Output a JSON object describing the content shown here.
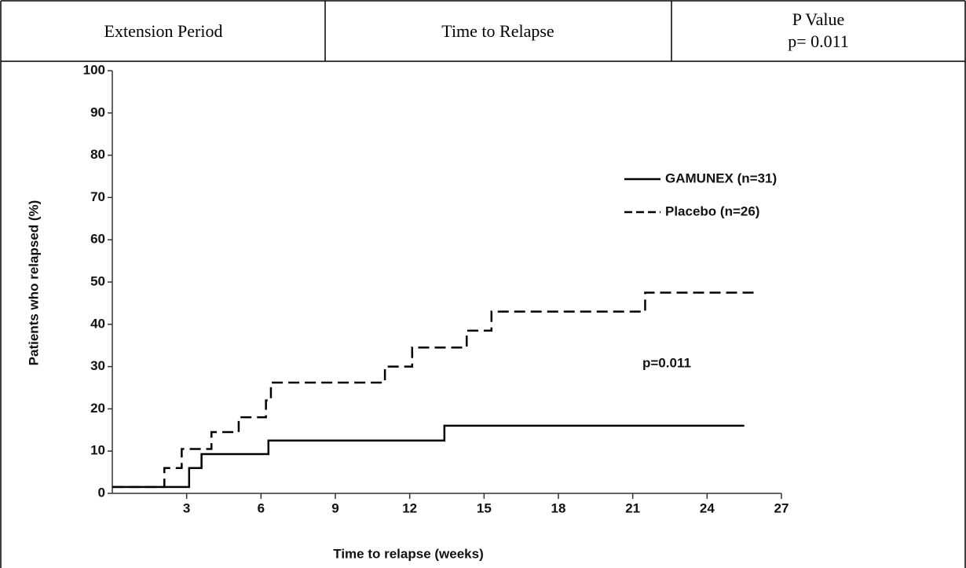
{
  "table": {
    "header": [
      "Extension Period",
      "Time to Relapse",
      "P Value"
    ],
    "p_value": "p= 0.011"
  },
  "chart_data": {
    "type": "line",
    "step": "post",
    "xlabel": "Time to relapse (weeks)",
    "ylabel": "Patients who relapsed (%)",
    "annotation": "p=0.011",
    "xlim": [
      0,
      27
    ],
    "ylim": [
      0,
      100
    ],
    "xticks": [
      3,
      6,
      9,
      12,
      15,
      18,
      21,
      24,
      27
    ],
    "yticks": [
      0,
      10,
      20,
      30,
      40,
      50,
      60,
      70,
      80,
      90,
      100
    ],
    "legend": "upper right",
    "series": [
      {
        "name": "GAMUNEX (n=31)",
        "color": "#000000",
        "style": "solid",
        "x": [
          0,
          3.1,
          3.6,
          6.3,
          13.4,
          25.5
        ],
        "values": [
          1.5,
          6,
          9.3,
          12.5,
          16,
          16
        ]
      },
      {
        "name": "Placebo (n=26)",
        "color": "#000000",
        "style": "dashed",
        "x": [
          0,
          2.1,
          2.8,
          4.0,
          5.1,
          6.2,
          6.4,
          11.0,
          12.1,
          14.3,
          15.3,
          21.5,
          26.0
        ],
        "values": [
          1.5,
          6,
          10.5,
          14.5,
          18,
          22,
          26.2,
          30,
          34.5,
          38.5,
          43,
          47.5,
          47.5
        ]
      }
    ]
  }
}
